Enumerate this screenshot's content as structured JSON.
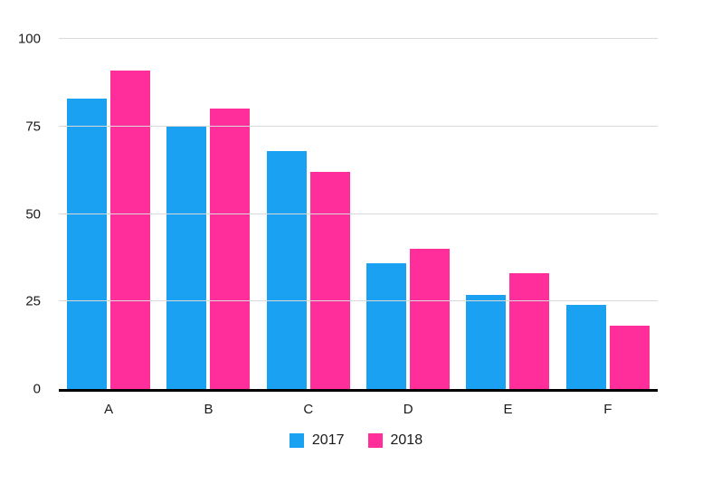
{
  "chart_data": {
    "type": "bar",
    "categories": [
      "A",
      "B",
      "C",
      "D",
      "E",
      "F"
    ],
    "series": [
      {
        "name": "2017",
        "color": "#1BA1F2",
        "values": [
          83,
          75,
          68,
          36,
          27,
          24
        ]
      },
      {
        "name": "2018",
        "color": "#FF2E9B",
        "values": [
          91,
          80,
          62,
          40,
          33,
          18
        ]
      }
    ],
    "title": "",
    "xlabel": "",
    "ylabel": "",
    "ylim": [
      0,
      100
    ],
    "yticks": [
      0,
      25,
      50,
      75,
      100
    ],
    "grid": true,
    "legend_position": "bottom"
  },
  "colors": {
    "background": "#ffffff",
    "gridline": "#d9d9d9",
    "axis_line": "#000000",
    "text": "#1a1a1a"
  }
}
